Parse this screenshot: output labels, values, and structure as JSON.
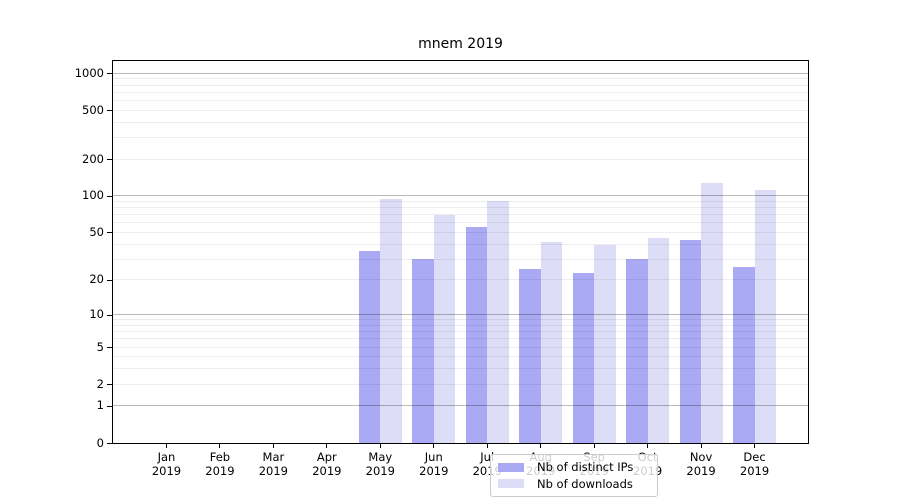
{
  "chart_data": {
    "type": "bar",
    "title": "mnem 2019",
    "categories": [
      {
        "month": "Jan",
        "year": "2019"
      },
      {
        "month": "Feb",
        "year": "2019"
      },
      {
        "month": "Mar",
        "year": "2019"
      },
      {
        "month": "Apr",
        "year": "2019"
      },
      {
        "month": "May",
        "year": "2019"
      },
      {
        "month": "Jun",
        "year": "2019"
      },
      {
        "month": "Jul",
        "year": "2019"
      },
      {
        "month": "Aug",
        "year": "2019"
      },
      {
        "month": "Sep",
        "year": "2019"
      },
      {
        "month": "Oct",
        "year": "2019"
      },
      {
        "month": "Nov",
        "year": "2019"
      },
      {
        "month": "Dec",
        "year": "2019"
      }
    ],
    "series": [
      {
        "name": "Nb of distinct IPs",
        "color": "#aaaaf4",
        "values": [
          0,
          0,
          0,
          0,
          35,
          30,
          55,
          25,
          23,
          30,
          43,
          26
        ]
      },
      {
        "name": "Nb of downloads",
        "color": "#ddddf8",
        "values": [
          0,
          0,
          0,
          0,
          94,
          70,
          90,
          42,
          39,
          45,
          127,
          112
        ]
      }
    ],
    "yscale": "log1p",
    "yticks": [
      0,
      1,
      2,
      5,
      10,
      20,
      50,
      100,
      200,
      500,
      1000
    ],
    "ylim": [
      0,
      1253
    ],
    "xlabel": "",
    "ylabel": "",
    "grid": "on",
    "legend_position": "lower center"
  },
  "style": {
    "major_gridline_decades": [
      1,
      10,
      100,
      1000
    ],
    "spine_color": "#000000",
    "background": "#ffffff"
  }
}
